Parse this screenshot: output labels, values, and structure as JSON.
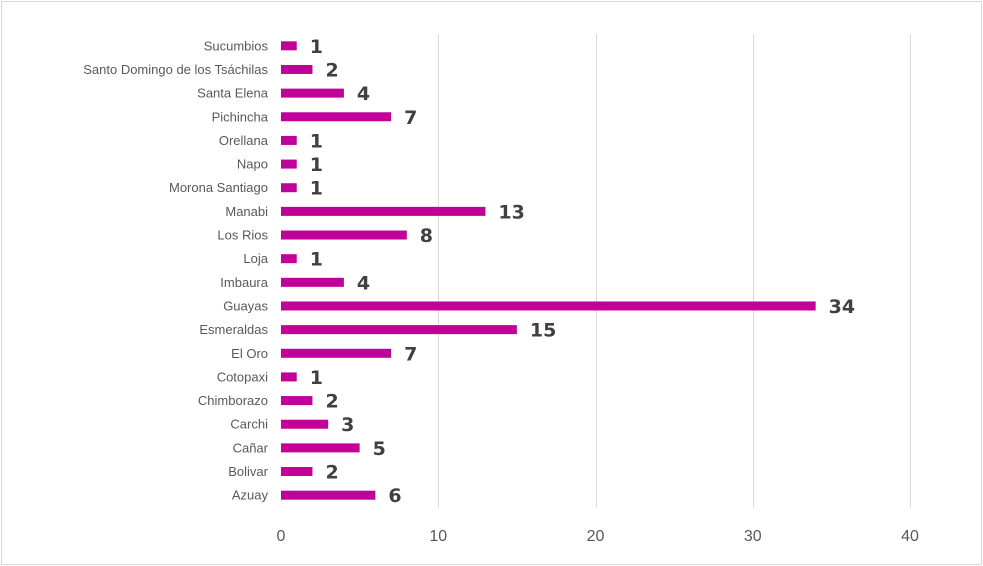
{
  "chart_data": {
    "type": "bar",
    "orientation": "horizontal",
    "categories": [
      "Azuay",
      "Bolivar",
      "Cañar",
      "Carchi",
      "Chimborazo",
      "Cotopaxi",
      "El Oro",
      "Esmeraldas",
      "Guayas",
      "Imbaura",
      "Loja",
      "Los Rios",
      "Manabi",
      "Morona Santiago",
      "Napo",
      "Orellana",
      "Pichincha",
      "Santa Elena",
      "Santo Domingo de los Tsáchilas",
      "Sucumbios"
    ],
    "values": [
      6,
      2,
      5,
      3,
      2,
      1,
      7,
      15,
      34,
      4,
      1,
      8,
      13,
      1,
      1,
      1,
      7,
      4,
      2,
      1
    ],
    "xlim": [
      0,
      40
    ],
    "x_ticks": [
      0,
      10,
      20,
      30,
      40
    ],
    "grid": true,
    "data_labels": true,
    "title": "",
    "xlabel": "",
    "ylabel": "",
    "colors": {
      "bar": "#c00097",
      "gridline": "#d9d9d9",
      "label_text": "#595959",
      "data_label_text": "#404040"
    }
  }
}
